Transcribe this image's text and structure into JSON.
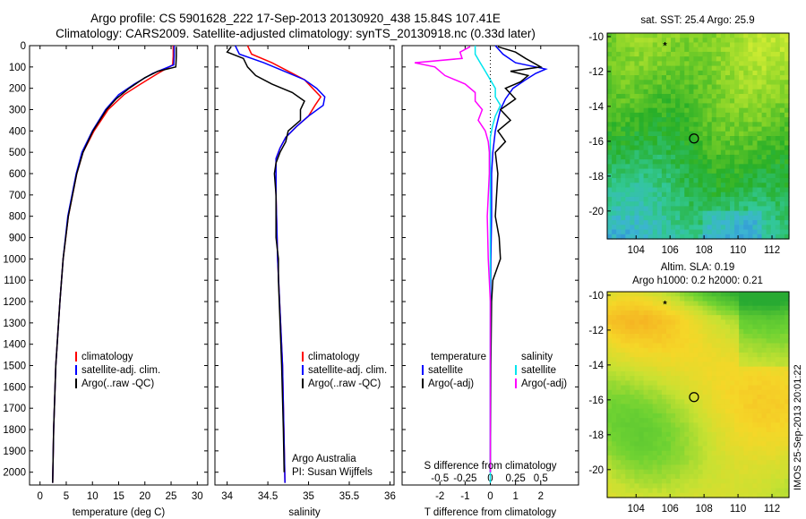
{
  "header": {
    "line1": "Argo profile: CS 5901628_222 17-Sep-2013 20130920_438 15.84S 107.41E",
    "line2": "Climatology: CARS2009. Satellite-adjusted climatology: synTS_20130918.nc (0.33d later)"
  },
  "colors": {
    "climatology": "#ff0000",
    "satellite": "#0000ff",
    "argo": "#000000",
    "sat_s": "#00e5ee",
    "argo_s": "#ff00ff"
  },
  "depth_axis": {
    "ticks": [
      0,
      100,
      200,
      300,
      400,
      500,
      600,
      700,
      800,
      900,
      1000,
      1100,
      1200,
      1300,
      1400,
      1500,
      1600,
      1700,
      1800,
      1900,
      2000
    ]
  },
  "footer_credit": "IMOS 25-Sep-2013 20:01:22",
  "chart_data": [
    {
      "id": "temperature",
      "type": "line",
      "xlabel": "temperature (deg C)",
      "ylabel": "depth",
      "xlim": [
        -2,
        32
      ],
      "ylim": [
        2060,
        0
      ],
      "xticks": [
        0,
        5,
        10,
        15,
        20,
        25,
        30
      ],
      "legend": {
        "placement": "lower-center",
        "items": [
          "climatology",
          "satellite-adj. clim.",
          "Argo(..raw -QC)"
        ]
      },
      "series": [
        {
          "name": "climatology",
          "color": "#ff0000",
          "depth": [
            0,
            50,
            90,
            130,
            180,
            230,
            300,
            400,
            500,
            600,
            800,
            1000,
            1200,
            1500,
            1800,
            2050
          ],
          "values": [
            25.4,
            25.4,
            25.3,
            22.5,
            19.2,
            16.0,
            13.0,
            10.3,
            8.2,
            7.0,
            5.4,
            4.4,
            3.8,
            3.0,
            2.6,
            2.4
          ]
        },
        {
          "name": "satellite-adj. clim.",
          "color": "#0000ff",
          "depth": [
            0,
            50,
            90,
            130,
            180,
            230,
            300,
            400,
            500,
            600,
            800,
            1000,
            1200,
            1500,
            1800,
            2050
          ],
          "values": [
            25.6,
            25.6,
            25.5,
            21.5,
            18.0,
            15.0,
            12.5,
            10.0,
            8.0,
            6.9,
            5.3,
            4.4,
            3.8,
            3.0,
            2.6,
            2.4
          ]
        },
        {
          "name": "Argo(..raw -QC)",
          "color": "#000000",
          "depth": [
            5,
            50,
            100,
            120,
            150,
            200,
            250,
            300,
            400,
            500,
            600,
            800,
            1000,
            1200,
            1500,
            1800,
            2050
          ],
          "values": [
            26.0,
            26.0,
            25.9,
            22.5,
            20.0,
            17.0,
            14.5,
            12.7,
            10.1,
            8.2,
            7.0,
            5.4,
            4.4,
            3.8,
            3.0,
            2.6,
            2.4
          ]
        }
      ]
    },
    {
      "id": "salinity",
      "type": "line",
      "xlabel": "salinity",
      "ylabel": "depth",
      "xlim": [
        33.85,
        36.05
      ],
      "ylim": [
        2060,
        0
      ],
      "xticks": [
        34,
        34.5,
        35,
        35.5,
        36
      ],
      "legend": {
        "placement": "lower-center",
        "items": [
          "climatology",
          "satellite-adj. clim.",
          "Argo(..raw -QC)"
        ]
      },
      "annotations": [
        "Argo Australia",
        "PI: Susan Wijffels"
      ],
      "series": [
        {
          "name": "climatology",
          "color": "#ff0000",
          "depth": [
            0,
            40,
            80,
            120,
            160,
            200,
            240,
            280,
            330,
            380,
            430,
            480,
            530,
            700,
            1000,
            1500,
            2050
          ],
          "values": [
            34.25,
            34.3,
            34.55,
            34.75,
            34.95,
            35.05,
            35.15,
            35.08,
            35.0,
            34.85,
            34.72,
            34.65,
            34.6,
            34.6,
            34.62,
            34.68,
            34.71
          ]
        },
        {
          "name": "satellite-adj. clim.",
          "color": "#0000ff",
          "depth": [
            0,
            40,
            80,
            120,
            160,
            200,
            240,
            280,
            330,
            380,
            430,
            480,
            530,
            700,
            1000,
            1500,
            2050
          ],
          "values": [
            34.1,
            34.15,
            34.45,
            34.7,
            34.95,
            35.1,
            35.2,
            35.18,
            35.0,
            34.85,
            34.72,
            34.65,
            34.6,
            34.6,
            34.62,
            34.68,
            34.71
          ]
        },
        {
          "name": "Argo(..raw -QC)",
          "color": "#000000",
          "depth": [
            5,
            30,
            60,
            100,
            140,
            180,
            220,
            260,
            300,
            350,
            400,
            450,
            500,
            550,
            600,
            700,
            800,
            900,
            1000,
            1100,
            1200,
            1500,
            1800,
            2000
          ],
          "values": [
            34.05,
            34.0,
            34.2,
            34.25,
            34.35,
            34.55,
            34.8,
            34.95,
            34.9,
            34.9,
            34.75,
            34.72,
            34.65,
            34.6,
            34.58,
            34.6,
            34.6,
            34.6,
            34.63,
            34.63,
            34.64,
            34.67,
            34.69,
            34.7
          ]
        }
      ]
    },
    {
      "id": "difference",
      "type": "line",
      "xlabel_top": "S difference from climatology",
      "xlabel": "T difference from climatology",
      "ylim": [
        2060,
        0
      ],
      "xticks_top": [
        -0.5,
        -0.25,
        0,
        0.25,
        0.5
      ],
      "xlim_top": [
        -0.875,
        0.875
      ],
      "xticks": [
        -2,
        -1,
        0,
        1,
        2
      ],
      "xlim": [
        -3.5,
        3.5
      ],
      "legend": {
        "placement": "lower-center",
        "groups": [
          {
            "title": "temperature",
            "items": [
              "satellite",
              "Argo(-adj)"
            ]
          },
          {
            "title": "salinity",
            "items": [
              "satellite",
              "Argo(-adj)"
            ]
          }
        ]
      },
      "series": [
        {
          "name": "temperature satellite",
          "color": "#0000ff",
          "depth": [
            0,
            40,
            80,
            110,
            130,
            160,
            200,
            250,
            300,
            350,
            400,
            450,
            500,
            600,
            700,
            800,
            1000,
            1200,
            1500,
            2000
          ],
          "values": [
            0.2,
            0.5,
            1.0,
            2.2,
            1.8,
            1.4,
            0.9,
            0.6,
            0.4,
            0.3,
            0.2,
            0.15,
            0.1,
            0.05,
            0.05,
            0.05,
            0.02,
            0.01,
            0,
            0
          ]
        },
        {
          "name": "temperature Argo(-adj)",
          "color": "#000000",
          "depth": [
            5,
            30,
            60,
            100,
            120,
            140,
            170,
            200,
            250,
            300,
            350,
            400,
            450,
            500,
            600,
            700,
            800,
            900,
            1000,
            1100,
            1200,
            1500,
            1800,
            2000
          ],
          "values": [
            0.3,
            1.0,
            1.4,
            2.0,
            0.8,
            1.5,
            1.2,
            0.6,
            1.0,
            0.4,
            0.8,
            0.3,
            0.6,
            0.2,
            0.3,
            0.25,
            0.2,
            0.35,
            0.4,
            0.1,
            0.05,
            0.02,
            0.01,
            0
          ]
        },
        {
          "name": "salinity satellite",
          "color": "#00e5ee",
          "depth": [
            0,
            40,
            80,
            120,
            160,
            200,
            240,
            280,
            330,
            380,
            430,
            500,
            700,
            1000,
            1500,
            2050
          ],
          "values": [
            -0.15,
            -0.15,
            -0.1,
            -0.05,
            0,
            0.05,
            0.05,
            0.1,
            0.05,
            0.02,
            0,
            0,
            0,
            0,
            0,
            0
          ]
        },
        {
          "name": "salinity Argo(-adj)",
          "color": "#ff00ff",
          "depth": [
            5,
            30,
            60,
            80,
            100,
            140,
            180,
            220,
            260,
            300,
            350,
            400,
            450,
            500,
            600,
            800,
            1000,
            1100,
            1200,
            1500,
            2000
          ],
          "values": [
            -0.2,
            -0.3,
            -0.28,
            -0.75,
            -0.55,
            -0.45,
            -0.25,
            -0.15,
            -0.15,
            -0.08,
            -0.12,
            -0.05,
            -0.02,
            -0.01,
            -0.01,
            -0.03,
            -0.02,
            -0.01,
            0,
            0,
            0
          ]
        }
      ]
    },
    {
      "id": "sst_map",
      "type": "heatmap",
      "title": "sat. SST: 25.4 Argo: 25.9",
      "xticks": [
        104,
        106,
        108,
        110,
        112
      ],
      "xlim": [
        102.3,
        113.0
      ],
      "yticks": [
        -10,
        -12,
        -14,
        -16,
        -18,
        -20
      ],
      "ylim": [
        -21.6,
        -9.8
      ],
      "profile_location": {
        "lon": 107.41,
        "lat": -15.84
      },
      "track_marker": {
        "lon": 105.7,
        "lat": -10.5
      }
    },
    {
      "id": "sla_map",
      "type": "heatmap",
      "title_lines": [
        "Altim. SLA: 0.19",
        "Argo h1000: 0.2 h2000: 0.21"
      ],
      "xticks": [
        104,
        106,
        108,
        110,
        112
      ],
      "xlim": [
        102.3,
        113.0
      ],
      "yticks": [
        -10,
        -12,
        -14,
        -16,
        -18,
        -20
      ],
      "ylim": [
        -21.6,
        -9.8
      ],
      "profile_location": {
        "lon": 107.41,
        "lat": -15.84
      },
      "track_marker": {
        "lon": 105.7,
        "lat": -10.5
      }
    }
  ]
}
